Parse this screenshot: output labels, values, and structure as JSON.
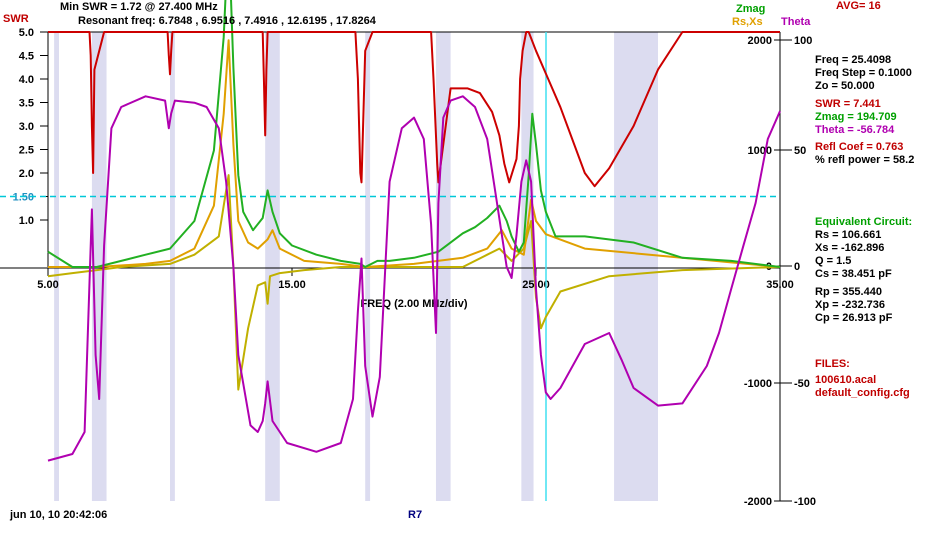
{
  "header": {
    "swr_label": "SWR",
    "min_swr": "Min SWR =    1.72 @  27.400 MHz",
    "resonant": "Resonant freq:  6.7848 , 6.9516 , 7.4916 , 12.6195 , 17.8264",
    "zmag_label": "Zmag",
    "rsxs_label": "Rs,Xs",
    "theta_label": "Theta",
    "avg": "AVG=  16"
  },
  "readout": {
    "freq": "Freq =  25.4098",
    "freq_step": "Freq Step =  0.1000",
    "zo": "Zo =   50.000",
    "swr": "SWR  =   7.441",
    "zmag": "Zmag  =  194.709",
    "theta": "Theta  =  -56.784",
    "refl_coef": "Refl Coef    = 0.763",
    "refl_power": "% refl power = 58.2",
    "equiv_title": "Equivalent Circuit:",
    "rs": "Rs  =  106.661",
    "xs": "Xs  =  -162.896",
    "q": "Q  =  1.5",
    "cs": "Cs  =   38.451  pF",
    "rp": "Rp  =  355.440",
    "xp": "Xp  =  -232.736",
    "cp": "Cp  =   26.913  pF",
    "files_title": "FILES:",
    "file1": "100610.acal",
    "file2": "default_config.cfg"
  },
  "footer": {
    "date": "jun 10, 10   20:42:06",
    "r7": "R7"
  },
  "colors": {
    "swr": "#cc0000",
    "zmag": "#22b022",
    "rs": "#e0a000",
    "xs": "#c0b000",
    "theta": "#b000b0",
    "band": "#dcdcf0",
    "ref_line": "#00c8d8",
    "cursor": "#40e0f0"
  },
  "chart_data": {
    "type": "line",
    "xlabel": "FREQ (2.00 MHz/div)",
    "xlim": [
      5,
      35
    ],
    "x_ticks": [
      {
        "value": 5,
        "label": "5.00"
      },
      {
        "value": 15,
        "label": "15.00"
      },
      {
        "value": 25,
        "label": "25.00"
      },
      {
        "value": 35,
        "label": "35.00"
      }
    ],
    "swr_axis": {
      "label": "SWR",
      "ylim": [
        0,
        5
      ],
      "ticks": [
        {
          "value": 5,
          "label": "5.0"
        },
        {
          "value": 4.5,
          "label": "4.5"
        },
        {
          "value": 4,
          "label": "4.0"
        },
        {
          "value": 3.5,
          "label": "3.5"
        },
        {
          "value": 3,
          "label": "3.0"
        },
        {
          "value": 2.5,
          "label": "2.5"
        },
        {
          "value": 2,
          "label": "2.0"
        },
        {
          "value": 1.5,
          "label": "1.50"
        },
        {
          "value": 1,
          "label": "1.0"
        }
      ]
    },
    "zmag_axis": {
      "label": "Zmag",
      "ticks": [
        {
          "value": 2000,
          "label": "2000"
        },
        {
          "value": 1000,
          "label": "1000"
        },
        {
          "value": 0,
          "label": "0"
        },
        {
          "value": -1000,
          "label": "-1000"
        },
        {
          "value": -2000,
          "label": "-2000"
        }
      ]
    },
    "theta_axis": {
      "label": "Theta",
      "ticks": [
        {
          "value": 100,
          "label": "100"
        },
        {
          "value": 50,
          "label": "50"
        },
        {
          "value": 0,
          "label": "0"
        },
        {
          "value": -50,
          "label": "-50"
        },
        {
          "value": -100,
          "label": "-100"
        }
      ]
    },
    "swr_reference": 1.5,
    "cursor_freq": 25.41,
    "shaded_bands": [
      [
        5.25,
        5.45
      ],
      [
        6.8,
        7.4
      ],
      [
        10.0,
        10.2
      ],
      [
        13.9,
        14.5
      ],
      [
        18.0,
        18.2
      ],
      [
        20.9,
        21.5
      ],
      [
        24.4,
        24.9
      ],
      [
        28.2,
        30.0
      ]
    ],
    "series": [
      {
        "name": "SWR",
        "x": [
          5.0,
          6.7,
          6.75,
          6.8,
          6.85,
          6.9,
          7.3,
          7.4,
          7.5,
          7.6,
          7.8,
          9.9,
          9.95,
          10.0,
          10.05,
          10.1,
          13.8,
          13.85,
          13.9,
          13.95,
          14.0,
          17.6,
          17.7,
          17.8,
          17.85,
          18.0,
          18.3,
          20.7,
          20.8,
          20.95,
          21.0,
          21.1,
          21.5,
          21.7,
          22.2,
          22.7,
          23.2,
          23.5,
          23.7,
          23.9,
          24.2,
          24.3,
          24.35,
          24.45,
          24.6,
          24.7,
          25.0,
          25.5,
          26.0,
          27.0,
          27.4,
          28.0,
          29.0,
          30.0,
          31.0,
          35.0
        ],
        "values": [
          5.0,
          5.0,
          4.5,
          3.0,
          2.0,
          4.2,
          5.0,
          5.0,
          5.0,
          5.0,
          5.0,
          5.0,
          4.5,
          4.1,
          4.6,
          5.0,
          5.0,
          4.0,
          2.8,
          4.2,
          5.0,
          5.0,
          4.0,
          2.0,
          1.8,
          4.6,
          5.0,
          5.0,
          4.0,
          2.2,
          1.8,
          2.2,
          3.8,
          3.8,
          3.8,
          3.7,
          3.3,
          2.8,
          2.2,
          1.8,
          2.3,
          3.0,
          4.0,
          4.6,
          5.0,
          5.0,
          4.6,
          4.0,
          3.4,
          2.0,
          1.72,
          2.1,
          3.0,
          4.2,
          5.0,
          5.0
        ]
      },
      {
        "name": "Zmag",
        "x": [
          5.0,
          6.0,
          7.0,
          8.0,
          9.0,
          10.0,
          11.0,
          11.8,
          12.2,
          12.4,
          12.6,
          12.8,
          13.0,
          13.4,
          13.8,
          14.0,
          14.2,
          14.5,
          15.0,
          16.0,
          17.0,
          17.8,
          18.0,
          18.5,
          19.0,
          20.0,
          21.0,
          22.0,
          22.5,
          23.0,
          23.5,
          23.8,
          24.0,
          24.3,
          24.5,
          24.7,
          24.85,
          25.0,
          25.2,
          25.4,
          25.8,
          27.0,
          29.0,
          31.0,
          33.0,
          35.0
        ],
        "values": [
          50,
          0,
          0,
          20,
          40,
          60,
          150,
          380,
          750,
          1100,
          650,
          300,
          180,
          120,
          160,
          250,
          180,
          110,
          70,
          40,
          20,
          10,
          0,
          20,
          20,
          30,
          50,
          110,
          130,
          160,
          200,
          150,
          100,
          50,
          80,
          300,
          500,
          400,
          250,
          180,
          100,
          100,
          80,
          30,
          20,
          0
        ]
      },
      {
        "name": "Rs",
        "x": [
          5.0,
          7.0,
          9.0,
          10.0,
          11.0,
          11.8,
          12.2,
          12.4,
          12.6,
          12.8,
          13.2,
          13.6,
          14.0,
          14.2,
          14.5,
          15.5,
          17.0,
          18.0,
          20.0,
          22.0,
          23.0,
          23.6,
          24.0,
          24.5,
          24.8,
          25.0,
          25.4,
          27.0,
          35.0
        ],
        "values": [
          0,
          0,
          10,
          20,
          60,
          200,
          500,
          740,
          400,
          150,
          80,
          60,
          90,
          120,
          60,
          20,
          10,
          0,
          10,
          30,
          60,
          120,
          60,
          40,
          220,
          150,
          107,
          60,
          0
        ]
      },
      {
        "name": "Xs",
        "x": [
          5.0,
          6.0,
          7.0,
          8.0,
          10.0,
          11.0,
          12.0,
          12.4,
          12.6,
          12.8,
          13.2,
          13.6,
          13.9,
          14.0,
          14.1,
          14.5,
          15.5,
          17.0,
          18.0,
          20.0,
          22.0,
          23.0,
          23.5,
          24.0,
          24.5,
          24.8,
          25.0,
          25.2,
          25.4,
          26.0,
          28.0,
          31.0,
          35.0
        ],
        "values": [
          -30,
          -20,
          -10,
          0,
          10,
          40,
          100,
          300,
          0,
          -400,
          -200,
          -60,
          -50,
          -120,
          -30,
          -20,
          -10,
          0,
          0,
          0,
          0,
          40,
          60,
          20,
          60,
          150,
          -100,
          -200,
          -163,
          -80,
          -30,
          -10,
          0
        ]
      },
      {
        "name": "Theta",
        "x": [
          5.0,
          6.0,
          6.5,
          6.8,
          6.95,
          7.1,
          7.3,
          7.6,
          8.0,
          9.0,
          9.8,
          9.95,
          10.05,
          10.2,
          11.0,
          11.5,
          12.0,
          12.3,
          12.6,
          12.8,
          13.3,
          13.6,
          13.8,
          13.9,
          14.0,
          14.2,
          14.8,
          16.0,
          17.0,
          17.5,
          17.7,
          17.85,
          18.0,
          18.3,
          18.6,
          19.0,
          19.5,
          20.0,
          20.4,
          20.7,
          20.9,
          21.0,
          21.2,
          21.5,
          22.0,
          22.5,
          23.0,
          23.4,
          23.8,
          24.0,
          24.2,
          24.4,
          24.6,
          24.8,
          25.0,
          25.2,
          25.4,
          25.6,
          26.0,
          27.0,
          28.0,
          28.5,
          29.0,
          30.0,
          31.0,
          32.0,
          32.5,
          33.0,
          33.5,
          34.0,
          34.5,
          35.0
        ],
        "values": [
          -88,
          -85,
          -75,
          27,
          -40,
          -60,
          10,
          65,
          75,
          80,
          78,
          65,
          72,
          78,
          77,
          75,
          65,
          40,
          0,
          -40,
          -72,
          -75,
          -70,
          -62,
          -52,
          -70,
          -80,
          -84,
          -80,
          -60,
          -20,
          4,
          -45,
          -68,
          -50,
          40,
          65,
          70,
          60,
          20,
          -30,
          30,
          70,
          78,
          80,
          75,
          60,
          30,
          0,
          -5,
          15,
          40,
          50,
          40,
          -10,
          -40,
          -57,
          -60,
          -55,
          -35,
          -30,
          -42,
          -55,
          -63,
          -62,
          -45,
          -30,
          -10,
          10,
          30,
          60,
          73
        ]
      }
    ]
  }
}
